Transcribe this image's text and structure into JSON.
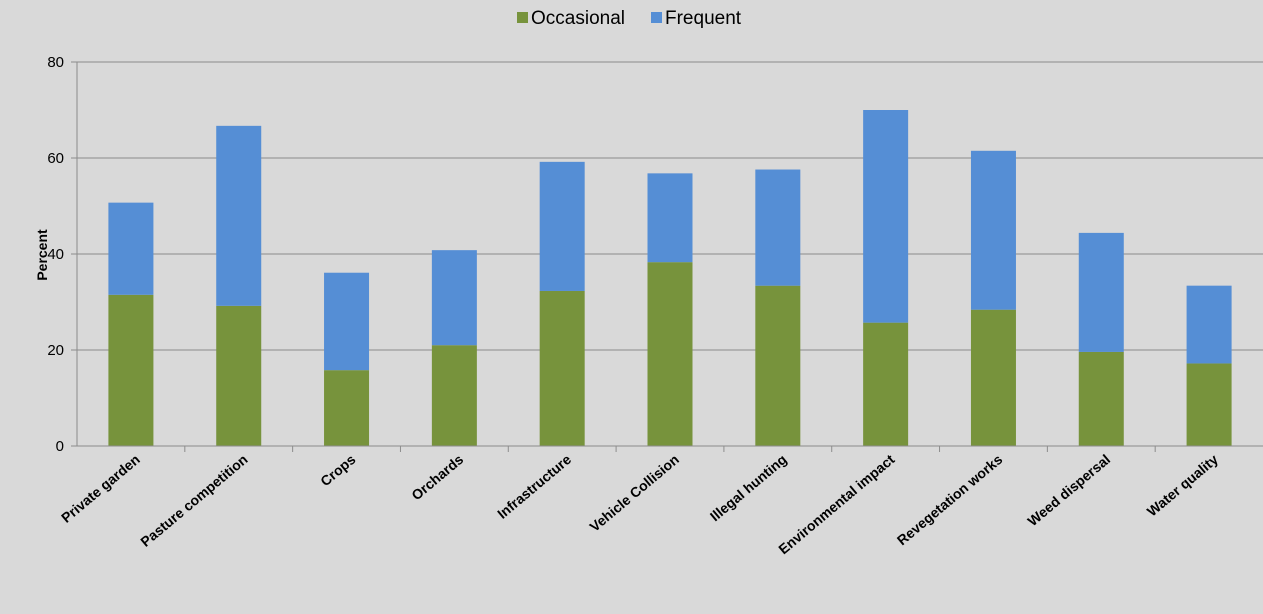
{
  "chart_data": {
    "type": "bar",
    "stacked": true,
    "title": "",
    "xlabel": "",
    "ylabel": "Percent",
    "ylim": [
      0,
      80
    ],
    "yticks": [
      0,
      20,
      40,
      60,
      80
    ],
    "grid": true,
    "legend_position": "top-center",
    "categories": [
      "Private garden",
      "Pasture competition",
      "Crops",
      "Orchards",
      "Infrastructure",
      "Vehicle Collision",
      "Illegal hunting",
      "Environmental impact",
      "Revegetation works",
      "Weed dispersal",
      "Water quality"
    ],
    "series": [
      {
        "name": "Occasional",
        "color": "#77933c",
        "values": [
          31.5,
          29.2,
          15.8,
          21.0,
          32.3,
          38.3,
          33.4,
          25.7,
          28.4,
          19.6,
          17.2
        ]
      },
      {
        "name": "Frequent",
        "color": "#558ed5",
        "values": [
          19.2,
          37.5,
          20.3,
          19.8,
          26.9,
          18.5,
          24.2,
          44.3,
          33.1,
          24.8,
          16.2
        ]
      }
    ]
  }
}
